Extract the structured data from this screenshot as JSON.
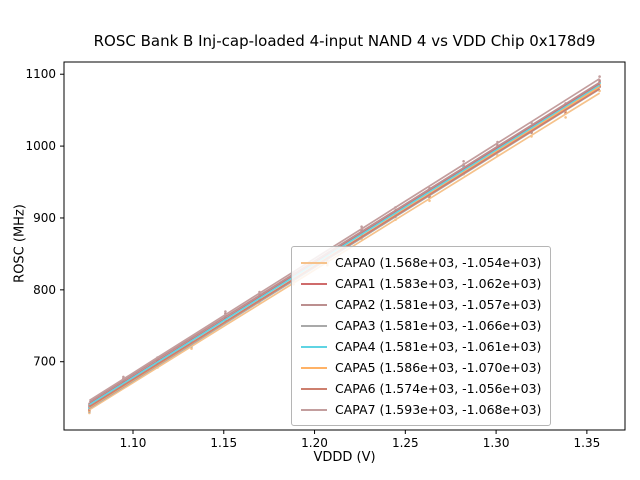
{
  "figure": {
    "title": "ROSC Bank B Inj-cap-loaded 4-input NAND 4 vs VDD Chip 0x178d9",
    "xlabel": "VDDD (V)",
    "ylabel": "ROSC (MHz)"
  },
  "chart_data": {
    "type": "line",
    "title": "ROSC Bank B Inj-cap-loaded 4-input NAND 4 vs VDD Chip 0x178d9",
    "xlabel": "VDDD (V)",
    "ylabel": "ROSC (MHz)",
    "grid": false,
    "legend_position": "lower right",
    "xlim": [
      1.062,
      1.371
    ],
    "ylim": [
      605,
      1117
    ],
    "x_ticks": [
      1.1,
      1.15,
      1.2,
      1.25,
      1.3,
      1.35
    ],
    "x_tick_labels": [
      "1.10",
      "1.15",
      "1.20",
      "1.25",
      "1.30",
      "1.35"
    ],
    "y_ticks": [
      700,
      800,
      900,
      1000,
      1100
    ],
    "y_tick_labels": [
      "700",
      "800",
      "900",
      "1000",
      "1100"
    ],
    "x": [
      1.076,
      1.0947,
      1.1135,
      1.1322,
      1.1509,
      1.1697,
      1.1884,
      1.2071,
      1.2259,
      1.2446,
      1.2633,
      1.2821,
      1.3008,
      1.3195,
      1.3383,
      1.357
    ],
    "series": [
      {
        "name": "CAPA0",
        "legend_label": "CAPA0 (1.568e+03, -1.054e+03)",
        "slope": 1568,
        "intercept": -1054,
        "color": "#f6c28b"
      },
      {
        "name": "CAPA1",
        "legend_label": "CAPA1 (1.583e+03, -1.062e+03)",
        "slope": 1583,
        "intercept": -1062,
        "color": "#cf6b6b"
      },
      {
        "name": "CAPA2",
        "legend_label": "CAPA2 (1.581e+03, -1.057e+03)",
        "slope": 1581,
        "intercept": -1057,
        "color": "#bc8f8f"
      },
      {
        "name": "CAPA3",
        "legend_label": "CAPA3 (1.581e+03, -1.066e+03)",
        "slope": 1581,
        "intercept": -1066,
        "color": "#a9a9a9"
      },
      {
        "name": "CAPA4",
        "legend_label": "CAPA4 (1.581e+03, -1.061e+03)",
        "slope": 1581,
        "intercept": -1061,
        "color": "#5fd4e3"
      },
      {
        "name": "CAPA5",
        "legend_label": "CAPA5 (1.586e+03, -1.070e+03)",
        "slope": 1586,
        "intercept": -1070,
        "color": "#ffb266"
      },
      {
        "name": "CAPA6",
        "legend_label": "CAPA6 (1.574e+03, -1.056e+03)",
        "slope": 1574,
        "intercept": -1056,
        "color": "#cd7f6e"
      },
      {
        "name": "CAPA7",
        "legend_label": "CAPA7 (1.593e+03, -1.068e+03)",
        "slope": 1593,
        "intercept": -1068,
        "color": "#c39e9e"
      }
    ]
  }
}
